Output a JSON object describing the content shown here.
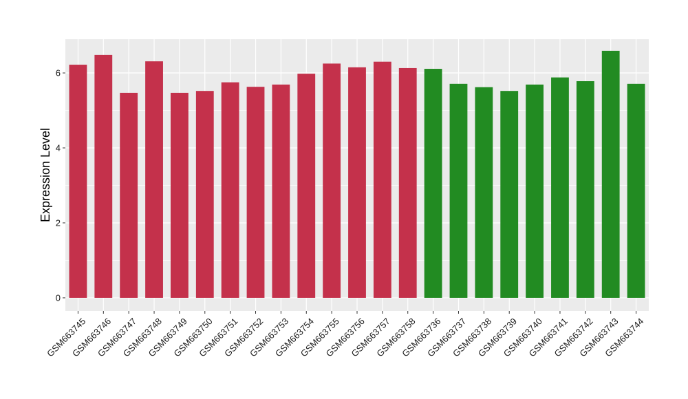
{
  "chart_data": {
    "type": "bar",
    "title": "",
    "xlabel": "",
    "ylabel": "Expression Level",
    "ylim": [
      -0.35,
      6.9
    ],
    "yticks": [
      0,
      2,
      4,
      6
    ],
    "grid": true,
    "legend": "none",
    "categories": [
      "GSM663745",
      "GSM663746",
      "GSM663747",
      "GSM663748",
      "GSM663749",
      "GSM663750",
      "GSM663751",
      "GSM663752",
      "GSM663753",
      "GSM663754",
      "GSM663755",
      "GSM663756",
      "GSM663757",
      "GSM663758",
      "GSM663736",
      "GSM663737",
      "GSM663738",
      "GSM663739",
      "GSM663740",
      "GSM663741",
      "GSM663742",
      "GSM663743",
      "GSM663744"
    ],
    "values": [
      6.22,
      6.48,
      5.47,
      6.31,
      5.47,
      5.52,
      5.75,
      5.63,
      5.69,
      5.98,
      6.25,
      6.15,
      6.3,
      6.13,
      6.11,
      5.71,
      5.62,
      5.52,
      5.69,
      5.88,
      5.78,
      6.59,
      5.71
    ],
    "group_sizes": [
      14,
      9
    ],
    "colors": [
      "#c4314b",
      "#228b22"
    ],
    "panel_background": "#ebebeb",
    "gridline_color": "#ffffff"
  }
}
